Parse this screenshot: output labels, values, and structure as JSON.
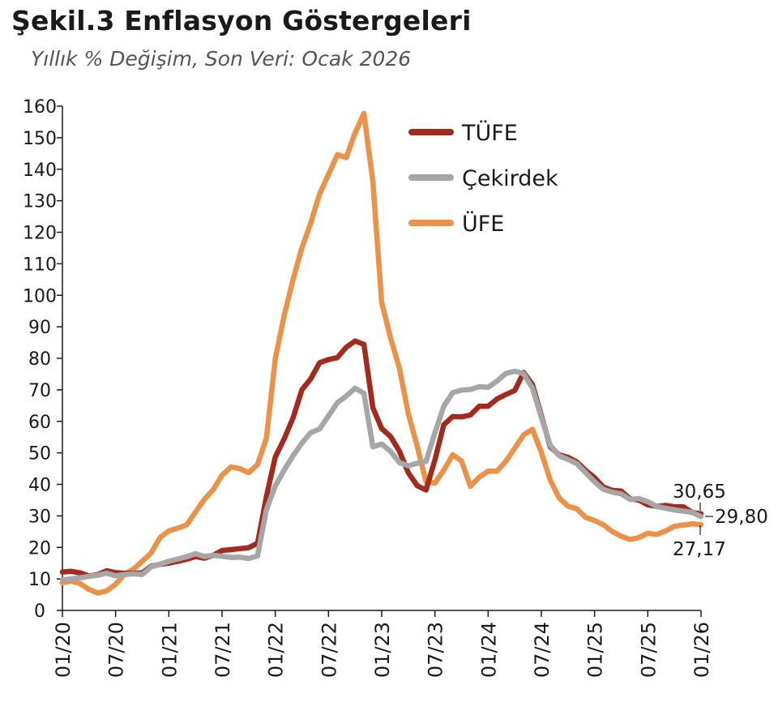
{
  "title": "Şekil.3 Enflasyon Göstergeleri",
  "subtitle": "Yıllık % Değişim, Son Veri: Ocak 2026",
  "colors": {
    "tufe": "#a52a1e",
    "cekirdek": "#a6a6a6",
    "ufe": "#ec9148",
    "axis": "#1a1a1a"
  },
  "chart_data": {
    "type": "line",
    "ylim": [
      0,
      160
    ],
    "y_ticks": [
      0,
      10,
      20,
      30,
      40,
      50,
      60,
      70,
      80,
      90,
      100,
      110,
      120,
      130,
      140,
      150,
      160
    ],
    "x_ticks": [
      "01/20",
      "07/20",
      "01/21",
      "07/21",
      "01/22",
      "07/22",
      "01/23",
      "07/23",
      "01/24",
      "07/24",
      "01/25",
      "07/25",
      "01/26"
    ],
    "x_start": "01/20",
    "legend_position": "top-right",
    "series": [
      {
        "name": "TÜFE",
        "values": [
          12.2,
          12.4,
          11.9,
          10.9,
          11.4,
          12.6,
          12.0,
          11.8,
          11.8,
          11.9,
          14.0,
          14.6,
          15.0,
          15.6,
          16.2,
          17.1,
          16.6,
          17.5,
          19.0,
          19.3,
          19.6,
          19.9,
          21.3,
          36.1,
          48.7,
          54.4,
          61.1,
          70.0,
          73.5,
          78.6,
          79.6,
          80.2,
          83.5,
          85.5,
          84.4,
          64.3,
          57.7,
          55.2,
          50.5,
          43.7,
          39.6,
          38.2,
          47.8,
          58.9,
          61.5,
          61.4,
          62.0,
          64.8,
          64.8,
          67.1,
          68.5,
          69.8,
          75.5,
          71.6,
          61.8,
          51.9,
          49.4,
          48.6,
          47.1,
          44.4,
          42.1,
          39.1,
          38.1,
          37.9,
          35.4,
          35.0,
          33.5,
          33.0,
          33.3,
          32.9,
          32.9,
          31.1,
          30.65
        ]
      },
      {
        "name": "Çekirdek",
        "values": [
          9.7,
          10.0,
          10.4,
          10.8,
          11.2,
          11.8,
          11.0,
          11.4,
          11.6,
          11.4,
          13.8,
          14.7,
          15.6,
          16.3,
          17.0,
          18.0,
          17.1,
          17.5,
          17.2,
          16.8,
          16.9,
          16.5,
          17.3,
          31.9,
          39.5,
          44.5,
          49.1,
          53.1,
          56.4,
          57.6,
          61.7,
          65.9,
          68.0,
          70.5,
          68.9,
          51.9,
          52.8,
          50.5,
          46.9,
          45.9,
          46.7,
          47.3,
          56.4,
          64.8,
          69.1,
          69.9,
          70.1,
          71.0,
          70.8,
          72.8,
          75.2,
          75.9,
          75.1,
          70.5,
          61.2,
          52.4,
          49.1,
          47.9,
          46.6,
          43.7,
          40.8,
          38.4,
          37.5,
          37.0,
          35.2,
          35.5,
          34.5,
          33.0,
          32.4,
          31.9,
          31.5,
          31.1,
          29.8
        ]
      },
      {
        "name": "ÜFE",
        "values": [
          8.8,
          9.3,
          8.5,
          6.7,
          5.5,
          6.2,
          8.3,
          11.5,
          13.1,
          15.6,
          18.2,
          23.1,
          25.2,
          26.1,
          27.1,
          31.2,
          35.2,
          38.3,
          42.9,
          45.5,
          45.0,
          43.7,
          46.3,
          54.6,
          79.9,
          93.5,
          105.0,
          115.0,
          122.9,
          132.2,
          138.3,
          144.6,
          143.7,
          151.5,
          157.7,
          136.0,
          97.7,
          86.5,
          76.8,
          62.4,
          52.1,
          40.8,
          40.4,
          44.5,
          49.4,
          47.4,
          39.4,
          42.3,
          44.2,
          44.2,
          47.3,
          51.5,
          55.7,
          57.5,
          50.1,
          41.4,
          35.7,
          33.1,
          32.2,
          29.5,
          28.5,
          27.2,
          25.0,
          23.5,
          22.5,
          23.1,
          24.5,
          24.1,
          25.2,
          26.7,
          27.1,
          27.5,
          27.2
        ]
      }
    ],
    "end_labels": {
      "tufe": "30,65",
      "cekirdek": "29,80",
      "ufe": "27,17"
    }
  }
}
